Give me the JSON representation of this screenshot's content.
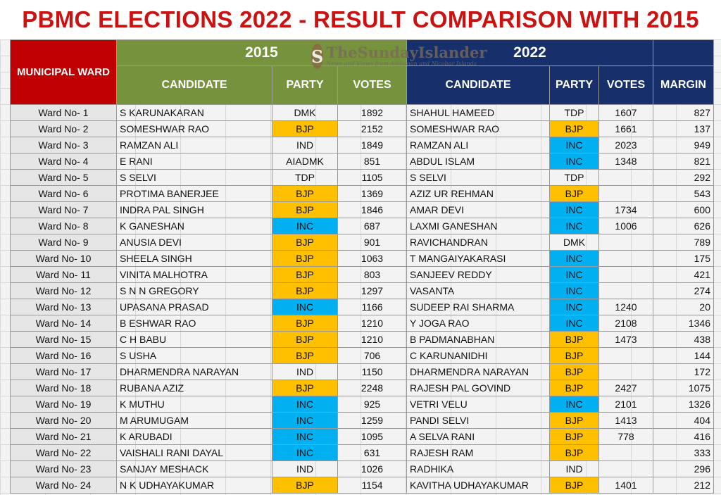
{
  "title": "PBMC ELECTIONS 2022 - RESULT COMPARISON WITH 2015",
  "watermark": {
    "logo_letter": "S",
    "name": "TheSundayIslander",
    "tagline": "News and Views from Andaman and Nicobar Islands"
  },
  "header": {
    "ward": "MUNICIPAL WARD",
    "year_2015": "2015",
    "year_2022": "2022",
    "candidate": "CANDIDATE",
    "party": "PARTY",
    "votes": "VOTES",
    "margin": "MARGIN"
  },
  "colors": {
    "BJP": "#ffc000",
    "INC": "#00b0f0",
    "title": "#cc1111",
    "green": "#76923c",
    "navy": "#17306b",
    "ward": "#c00000"
  },
  "rows": [
    {
      "ward": "Ward No- 1",
      "c15": "S KARUNAKARAN",
      "p15": "DMK",
      "v15": "1892",
      "c22": "SHAHUL HAMEED",
      "p22": "TDP",
      "v22": "1607",
      "m": "827"
    },
    {
      "ward": "Ward No- 2",
      "c15": "SOMESHWAR RAO",
      "p15": "BJP",
      "v15": "2152",
      "c22": "SOMESHWAR RAO",
      "p22": "BJP",
      "v22": "1661",
      "m": "137"
    },
    {
      "ward": "Ward No- 3",
      "c15": "RAMZAN ALI",
      "p15": "IND",
      "v15": "1849",
      "c22": "RAMZAN ALI",
      "p22": "INC",
      "v22": "2023",
      "m": "949"
    },
    {
      "ward": "Ward No- 4",
      "c15": "E RANI",
      "p15": "AIADMK",
      "v15": "851",
      "c22": "ABDUL ISLAM",
      "p22": "INC",
      "v22": "1348",
      "m": "821"
    },
    {
      "ward": "Ward No- 5",
      "c15": "S SELVI",
      "p15": "TDP",
      "v15": "1105",
      "c22": "S SELVI",
      "p22": "TDP",
      "v22": "",
      "m": "292"
    },
    {
      "ward": "Ward No- 6",
      "c15": "PROTIMA BANERJEE",
      "p15": "BJP",
      "v15": "1369",
      "c22": "AZIZ UR REHMAN",
      "p22": "BJP",
      "v22": "",
      "m": "543"
    },
    {
      "ward": "Ward No- 7",
      "c15": "INDRA PAL SINGH",
      "p15": "BJP",
      "v15": "1846",
      "c22": "AMAR DEVI",
      "p22": "INC",
      "v22": "1734",
      "m": "600"
    },
    {
      "ward": "Ward No- 8",
      "c15": "K GANESHAN",
      "p15": "INC",
      "v15": "687",
      "c22": "LAXMI GANESHAN",
      "p22": "INC",
      "v22": "1006",
      "m": "626"
    },
    {
      "ward": "Ward No- 9",
      "c15": "ANUSIA DEVI",
      "p15": "BJP",
      "v15": "901",
      "c22": "RAVICHANDRAN",
      "p22": "DMK",
      "v22": "",
      "m": "789"
    },
    {
      "ward": "Ward No- 10",
      "c15": "SHEELA SINGH",
      "p15": "BJP",
      "v15": "1063",
      "c22": "T MANGAIYAKARASI",
      "p22": "INC",
      "v22": "",
      "m": "175"
    },
    {
      "ward": "Ward No- 11",
      "c15": "VINITA MALHOTRA",
      "p15": "BJP",
      "v15": "803",
      "c22": "SANJEEV REDDY",
      "p22": "INC",
      "v22": "",
      "m": "421"
    },
    {
      "ward": "Ward No- 12",
      "c15": "S N N GREGORY",
      "p15": "BJP",
      "v15": "1297",
      "c22": "VASANTA",
      "p22": "INC",
      "v22": "",
      "m": "274"
    },
    {
      "ward": "Ward No- 13",
      "c15": "UPASANA PRASAD",
      "p15": "INC",
      "v15": "1166",
      "c22": "SUDEEP RAI SHARMA",
      "p22": "INC",
      "v22": "1240",
      "m": "20"
    },
    {
      "ward": "Ward No- 14",
      "c15": "B ESHWAR RAO",
      "p15": "BJP",
      "v15": "1210",
      "c22": "Y JOGA RAO",
      "p22": "INC",
      "v22": "2108",
      "m": "1346"
    },
    {
      "ward": "Ward No- 15",
      "c15": "C H BABU",
      "p15": "BJP",
      "v15": "1210",
      "c22": "B PADMANABHAN",
      "p22": "BJP",
      "v22": "1473",
      "m": "438"
    },
    {
      "ward": "Ward No- 16",
      "c15": "S USHA",
      "p15": "BJP",
      "v15": "706",
      "c22": "C KARUNANIDHI",
      "p22": "BJP",
      "v22": "",
      "m": "144"
    },
    {
      "ward": "Ward No- 17",
      "c15": "DHARMENDRA NARAYAN",
      "p15": "IND",
      "v15": "1150",
      "c22": "DHARMENDRA NARAYAN",
      "p22": "BJP",
      "v22": "",
      "m": "172"
    },
    {
      "ward": "Ward No- 18",
      "c15": "RUBANA AZIZ",
      "p15": "BJP",
      "v15": "2248",
      "c22": "RAJESH PAL GOVIND",
      "p22": "BJP",
      "v22": "2427",
      "m": "1075"
    },
    {
      "ward": "Ward No- 19",
      "c15": "K MUTHU",
      "p15": "INC",
      "v15": "925",
      "c22": "VETRI VELU",
      "p22": "INC",
      "v22": "2101",
      "m": "1326"
    },
    {
      "ward": "Ward No- 20",
      "c15": "M ARUMUGAM",
      "p15": "INC",
      "v15": "1259",
      "c22": "PANDI SELVI",
      "p22": "BJP",
      "v22": "1413",
      "m": "404"
    },
    {
      "ward": "Ward No- 21",
      "c15": "K ARUBADI",
      "p15": "INC",
      "v15": "1095",
      "c22": "A SELVA RANI",
      "p22": "BJP",
      "v22": "778",
      "m": "416"
    },
    {
      "ward": "Ward No- 22",
      "c15": "VAISHALI RANI DAYAL",
      "p15": "INC",
      "v15": "631",
      "c22": "RAJESH RAM",
      "p22": "BJP",
      "v22": "",
      "m": "333"
    },
    {
      "ward": "Ward No- 23",
      "c15": "SANJAY MESHACK",
      "p15": "IND",
      "v15": "1026",
      "c22": "RADHIKA",
      "p22": "IND",
      "v22": "",
      "m": "296"
    },
    {
      "ward": "Ward No- 24",
      "c15": "N K UDHAYAKUMAR",
      "p15": "BJP",
      "v15": "1154",
      "c22": "KAVITHA UDHAYAKUMAR",
      "p22": "BJP",
      "v22": "1401",
      "m": "212"
    }
  ]
}
